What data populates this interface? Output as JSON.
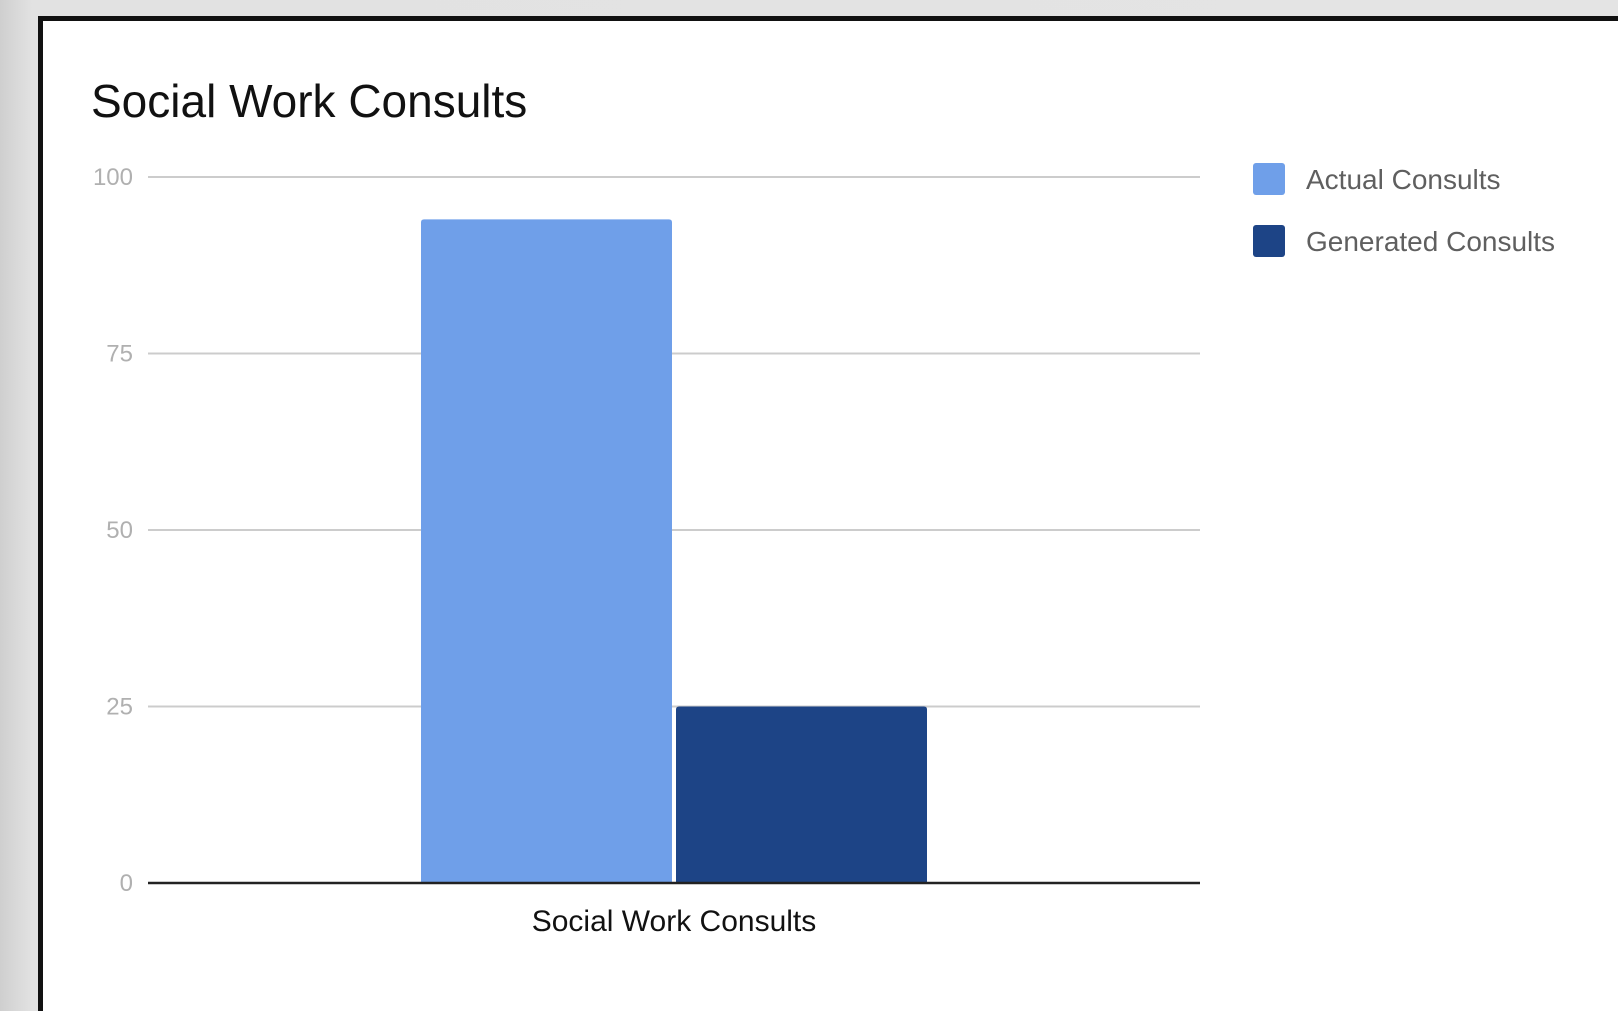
{
  "colors": {
    "actual": "#6f9fe9",
    "generated": "#1d4486",
    "grid": "#cccccc",
    "axis": "#222222"
  },
  "chart_data": {
    "type": "bar",
    "title": "Social Work Consults",
    "categories": [
      "Social Work Consults"
    ],
    "series": [
      {
        "name": "Actual Consults",
        "values": [
          94
        ],
        "color": "#6f9fe9"
      },
      {
        "name": "Generated Consults",
        "values": [
          25
        ],
        "color": "#1d4486"
      }
    ],
    "xlabel": "",
    "ylabel": "",
    "ylim": [
      0,
      100
    ],
    "yticks": [
      0,
      25,
      50,
      75,
      100
    ],
    "grid": true,
    "legend": "right"
  }
}
